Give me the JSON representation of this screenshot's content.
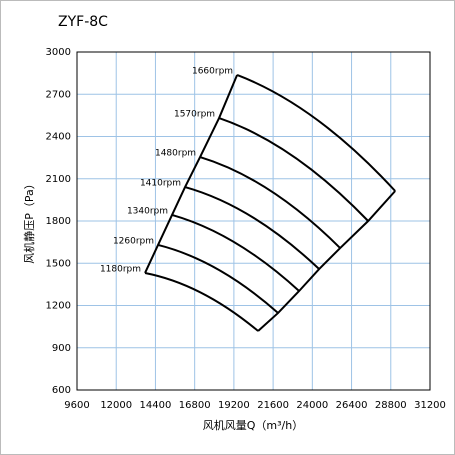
{
  "chart_data": {
    "type": "line",
    "title": "ZYF-8C",
    "x_label": "风机风量Q（m³/h）",
    "y_label": "风机静压P（Pa）",
    "xlim": [
      9600,
      31200
    ],
    "xticks": [
      9600,
      12000,
      14400,
      16800,
      19200,
      21600,
      24000,
      26400,
      28800,
      31200
    ],
    "ylim": [
      600,
      3000
    ],
    "yticks": [
      600,
      900,
      1200,
      1500,
      1800,
      2100,
      2400,
      2700,
      3000
    ],
    "grid": true,
    "color": "#000000",
    "series": [
      {
        "name": "1660rpm",
        "x": [
          19396,
          24232,
          29069
        ],
        "values": [
          2837,
          2524,
          2013
        ]
      },
      {
        "name": "1570rpm",
        "x": [
          18294,
          22854,
          27416
        ],
        "values": [
          2531,
          2258,
          1800
        ]
      },
      {
        "name": "1480rpm",
        "x": [
          17131,
          21415,
          25702
        ],
        "values": [
          2254,
          2017,
          1608
        ]
      },
      {
        "name": "1410rpm",
        "x": [
          16212,
          20314,
          24415
        ],
        "values": [
          2041,
          1829,
          1459
        ]
      },
      {
        "name": "1340rpm",
        "x": [
          15416,
          19303,
          23191
        ],
        "values": [
          1843,
          1644,
          1303
        ]
      },
      {
        "name": "1260rpm",
        "x": [
          14559,
          18232,
          21905
        ],
        "values": [
          1630,
          1456,
          1147
        ]
      },
      {
        "name": "1180rpm",
        "x": [
          13763,
          17222,
          20681
        ],
        "values": [
          1431,
          1289,
          1019
        ]
      }
    ]
  }
}
